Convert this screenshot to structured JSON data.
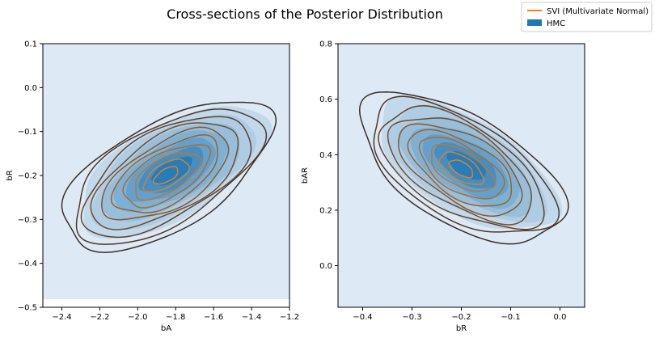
{
  "figure": {
    "title": "Cross-sections of the Posterior Distribution"
  },
  "legend": {
    "placement": "top-right",
    "entries": [
      {
        "label": "SVI (Multivariate Normal)",
        "kind": "line",
        "color": "#ff7f0e"
      },
      {
        "label": "HMC",
        "kind": "patch",
        "color": "#1f77b4"
      }
    ]
  },
  "colors": {
    "hmc_fill": "#1f77b4",
    "svi_light": "#d9822b",
    "svi_dark": "#3a2f2a",
    "background_fill": "#dde9f4"
  },
  "chart_data": [
    {
      "type": "kde-contour",
      "xlabel": "bA",
      "ylabel": "bR",
      "xlim": [
        -2.5,
        -1.2
      ],
      "ylim": [
        -0.5,
        0.1
      ],
      "xticks": [
        -2.4,
        -2.2,
        -2.0,
        -1.8,
        -1.6,
        -1.4,
        -1.2
      ],
      "xtick_labels": [
        "−2.4",
        "−2.2",
        "−2.0",
        "−1.8",
        "−1.6",
        "−1.4",
        "−1.2"
      ],
      "yticks": [
        -0.5,
        -0.4,
        -0.3,
        -0.2,
        -0.1,
        0.0,
        0.1
      ],
      "ytick_labels": [
        "−0.5",
        "−0.4",
        "−0.3",
        "−0.2",
        "−0.1",
        "0.0",
        "0.1"
      ],
      "hmc": {
        "center": [
          -1.82,
          -0.19
        ],
        "sx": 0.19,
        "sy": 0.058,
        "rho": 0.62
      },
      "svi": {
        "center": [
          -1.85,
          -0.2
        ],
        "sx": 0.2,
        "sy": 0.062,
        "rho": 0.6
      },
      "levels": 10
    },
    {
      "type": "kde-contour",
      "xlabel": "bR",
      "ylabel": "bAR",
      "xlim": [
        -0.45,
        0.05
      ],
      "ylim": [
        -0.15,
        0.8
      ],
      "xticks": [
        -0.4,
        -0.3,
        -0.2,
        -0.1,
        0.0
      ],
      "xtick_labels": [
        "−0.4",
        "−0.3",
        "−0.2",
        "−0.1",
        "0.0"
      ],
      "yticks": [
        0.0,
        0.2,
        0.4,
        0.6,
        0.8
      ],
      "ytick_labels": [
        "0.0",
        "0.2",
        "0.4",
        "0.6",
        "0.8"
      ],
      "hmc": {
        "center": [
          -0.19,
          0.36
        ],
        "sx": 0.07,
        "sy": 0.092,
        "rho": -0.6
      },
      "svi": {
        "center": [
          -0.2,
          0.35
        ],
        "sx": 0.075,
        "sy": 0.098,
        "rho": -0.58
      },
      "levels": 10
    }
  ]
}
